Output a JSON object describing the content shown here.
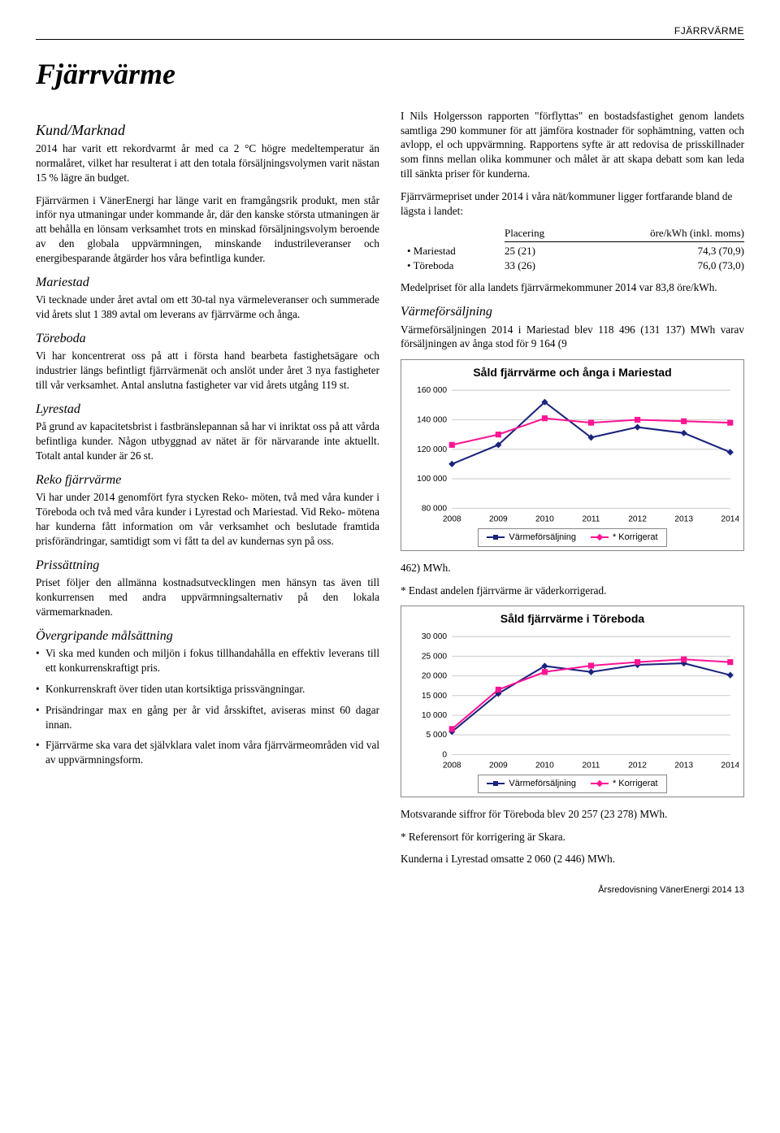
{
  "header_label": "FJÄRRVÄRME",
  "title": "Fjärrvärme",
  "left": {
    "s1_h": "Kund/Marknad",
    "s1_p1": "2014 har varit ett rekordvarmt år med ca 2 °C högre medeltemperatur än normalåret, vilket har resulterat i att den totala försäljningsvolymen varit nästan 15 % lägre än budget.",
    "s1_p2": "Fjärrvärmen i VänerEnergi har länge varit en framgångsrik produkt, men står inför nya utmaningar under kommande år, där den kanske största utmaningen är att behålla en lönsam verksamhet trots en minskad försäljningsvolym beroende av den globala uppvärmningen, minskande industrileveranser och energibesparande åtgärder hos våra befintliga kunder.",
    "s2_h": "Mariestad",
    "s2_p": "Vi tecknade under året avtal om ett 30-tal nya värmeleveranser och summerade vid årets slut 1 389 avtal om leverans av fjärrvärme och ånga.",
    "s3_h": "Töreboda",
    "s3_p": "Vi har koncentrerat oss på att i första hand bearbeta fastighetsägare och industrier längs befintligt fjärrvärmenät och anslöt under året 3 nya fastigheter till vår verksamhet. Antal anslutna fastigheter var vid årets utgång 119 st.",
    "s4_h": "Lyrestad",
    "s4_p": "På grund av kapacitetsbrist i fastbränslepannan så har vi inriktat oss på att vårda befintliga kunder. Någon utbyggnad av nätet är för närvarande inte aktuellt. Totalt antal kunder är 26 st.",
    "s5_h": "Reko fjärrvärme",
    "s5_p": "Vi har under 2014 genomfört fyra stycken Reko- möten, två med våra kunder i Töreboda och två med våra kunder i Lyrestad och Mariestad. Vid Reko- mötena har kunderna fått information om vår verksamhet och beslutade framtida prisförändringar, samtidigt som vi fått ta del av kundernas syn på oss.",
    "s6_h": "Prissättning",
    "s6_p": "Priset följer den allmänna kostnadsutvecklingen men hänsyn tas även till konkurrensen med andra uppvärmningsalternativ på den lokala värmemarknaden.",
    "s7_h": "Övergripande målsättning",
    "goals": [
      "Vi ska med kunden och miljön i fokus tillhandahålla en effektiv leverans till ett konkurrenskraftigt pris.",
      "Konkurrenskraft över tiden utan kortsiktiga prissvängningar.",
      "Prisändringar max en gång per år vid årsskiftet, aviseras minst 60 dagar innan.",
      "Fjärrvärme ska vara det självklara valet inom våra fjärrvärmeområden vid val av uppvärmningsform."
    ]
  },
  "right": {
    "p1": "I Nils Holgersson rapporten \"förflyttas\" en bostadsfastighet genom landets samtliga 290 kommuner för att jämföra kostnader för sophämtning, vatten och avlopp, el och uppvärmning. Rapportens syfte är att redovisa de prisskillnader som finns mellan olika kommuner och målet är att skapa debatt som kan leda till sänkta priser för kunderna.",
    "p2": "Fjärrvärmepriset under 2014 i våra nät/kommuner ligger fortfarande bland de lägsta i landet:",
    "table": {
      "col1": "Placering",
      "col2": "öre/kWh (inkl. moms)",
      "rows": [
        {
          "name": "• Mariestad",
          "c1": "25 (21)",
          "c2": "74,3 (70,9)"
        },
        {
          "name": "• Töreboda",
          "c1": "33 (26)",
          "c2": "76,0 (73,0)"
        }
      ]
    },
    "p3": "Medelpriset för alla landets fjärrvärmekommuner 2014 var 83,8 öre/kWh.",
    "h_val": "Värmeförsäljning",
    "p4": "Värmeförsäljningen 2014 i Mariestad blev 118 496 (131 137) MWh varav försäljningen av ånga stod för 9 164 (9",
    "p5": "462) MWh.",
    "p6": "* Endast andelen fjärrvärme är väderkorrigerad.",
    "p7": "Motsvarande siffror för Töreboda blev 20 257 (23 278) MWh.",
    "p8": "* Referensort för korrigering är Skara.",
    "p9": "Kunderna i Lyrestad omsatte 2 060 (2 446) MWh."
  },
  "chart1": {
    "title": "Såld fjärrvärme och ånga i Mariestad",
    "type": "line",
    "x": [
      "2008",
      "2009",
      "2010",
      "2011",
      "2012",
      "2013",
      "2014"
    ],
    "ylim": [
      80000,
      160000
    ],
    "yticks": [
      80000,
      100000,
      120000,
      140000,
      160000
    ],
    "series": [
      {
        "name": "Värmeförsäljning",
        "color": "#1a237e",
        "marker": "diamond",
        "values": [
          110000,
          123000,
          152000,
          128000,
          135000,
          131000,
          118000
        ]
      },
      {
        "name": "* Korrigerat",
        "color": "#ff1493",
        "marker": "square",
        "values": [
          123000,
          130000,
          141000,
          138000,
          140000,
          139000,
          138000
        ]
      }
    ],
    "legend": [
      "Värmeförsäljning",
      "* Korrigerat"
    ],
    "grid_color": "#cccccc",
    "bg": "#ffffff"
  },
  "chart2": {
    "title": "Såld fjärrvärme i Töreboda",
    "type": "line",
    "x": [
      "2008",
      "2009",
      "2010",
      "2011",
      "2012",
      "2013",
      "2014"
    ],
    "ylim": [
      0,
      30000
    ],
    "yticks": [
      0,
      5000,
      10000,
      15000,
      20000,
      25000,
      30000
    ],
    "series": [
      {
        "name": "Värmeförsäljning",
        "color": "#1a237e",
        "marker": "diamond",
        "values": [
          5800,
          15500,
          22500,
          21000,
          22800,
          23200,
          20200
        ]
      },
      {
        "name": "* Korrigerat",
        "color": "#ff1493",
        "marker": "square",
        "values": [
          6500,
          16500,
          21000,
          22600,
          23500,
          24200,
          23500
        ]
      }
    ],
    "legend": [
      "Värmeförsäljning",
      "* Korrigerat"
    ],
    "grid_color": "#cccccc",
    "bg": "#ffffff"
  },
  "footer": "Årsredovisning VänerEnergi 2014  13"
}
